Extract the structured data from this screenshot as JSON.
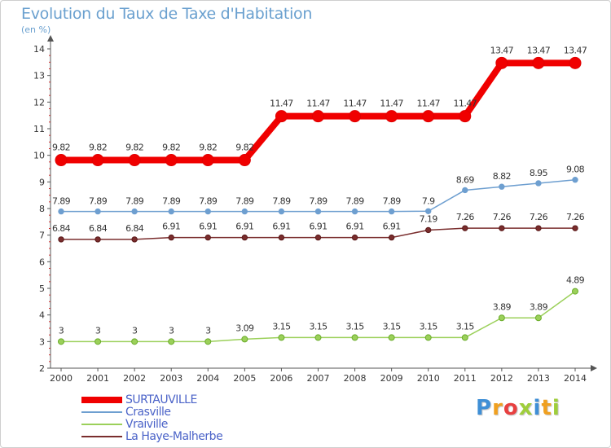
{
  "title": "Evolution du Taux de Taxe d'Habitation",
  "unit_label": "(en %)",
  "logo": {
    "text": "Proxiti",
    "letters": [
      {
        "char": "P",
        "color": "#3f8fd6"
      },
      {
        "char": "r",
        "color": "#f0a020"
      },
      {
        "char": "o",
        "color": "#e84040"
      },
      {
        "char": "x",
        "color": "#9fce3b"
      },
      {
        "char": "i",
        "color": "#3f8fd6"
      },
      {
        "char": "t",
        "color": "#f0a020"
      },
      {
        "char": "i",
        "color": "#9fce3b"
      }
    ]
  },
  "chart_data": {
    "type": "line",
    "title": "Evolution du Taux de Taxe d'Habitation",
    "ylabel": "(en %)",
    "xlabel": "",
    "x": [
      "2000",
      "2001",
      "2002",
      "2003",
      "2004",
      "2005",
      "2006",
      "2007",
      "2008",
      "2009",
      "2010",
      "2011",
      "2012",
      "2013",
      "2014"
    ],
    "ylim": [
      2,
      14
    ],
    "yticks": [
      "2",
      "3",
      "4",
      "5",
      "6",
      "7",
      "8",
      "9",
      "10",
      "11",
      "12",
      "13",
      "14"
    ],
    "grid": false,
    "legend_position": "bottom-left",
    "series": [
      {
        "name": "SURTAUVILLE",
        "color": "#f00000",
        "values": [
          9.82,
          9.82,
          9.82,
          9.82,
          9.82,
          9.82,
          11.47,
          11.47,
          11.47,
          11.47,
          11.47,
          11.47,
          13.47,
          13.47,
          13.47
        ],
        "labels": [
          "9.82",
          "9.82",
          "9.82",
          "9.82",
          "9.82",
          "9.82",
          "11.47",
          "11.47",
          "11.47",
          "11.47",
          "11.47",
          "11.47",
          "13.47",
          "13.47",
          "13.47"
        ]
      },
      {
        "name": "Crasville",
        "color": "#6e9fd0",
        "values": [
          7.89,
          7.89,
          7.89,
          7.89,
          7.89,
          7.89,
          7.89,
          7.89,
          7.89,
          7.89,
          7.9,
          8.69,
          8.82,
          8.95,
          9.08
        ],
        "labels": [
          "7.89",
          "7.89",
          "7.89",
          "7.89",
          "7.89",
          "7.89",
          "7.89",
          "7.89",
          "7.89",
          "7.89",
          "7.9",
          "8.69",
          "8.82",
          "8.95",
          "9.08"
        ]
      },
      {
        "name": "Vraiville",
        "color": "#9bd05a",
        "values": [
          3,
          3,
          3,
          3,
          3,
          3.09,
          3.15,
          3.15,
          3.15,
          3.15,
          3.15,
          3.15,
          3.89,
          3.89,
          4.89
        ],
        "labels": [
          "3",
          "3",
          "3",
          "3",
          "3",
          "3.09",
          "3.15",
          "3.15",
          "3.15",
          "3.15",
          "3.15",
          "3.15",
          "3.89",
          "3.89",
          "4.89"
        ]
      },
      {
        "name": "La Haye-Malherbe",
        "color": "#7a2d2d",
        "values": [
          6.84,
          6.84,
          6.84,
          6.91,
          6.91,
          6.91,
          6.91,
          6.91,
          6.91,
          6.91,
          7.19,
          7.26,
          7.26,
          7.26,
          7.26
        ],
        "labels": [
          "6.84",
          "6.84",
          "6.84",
          "6.91",
          "6.91",
          "6.91",
          "6.91",
          "6.91",
          "6.91",
          "6.91",
          "7.19",
          "7.26",
          "7.26",
          "7.26",
          "7.26"
        ]
      }
    ]
  }
}
